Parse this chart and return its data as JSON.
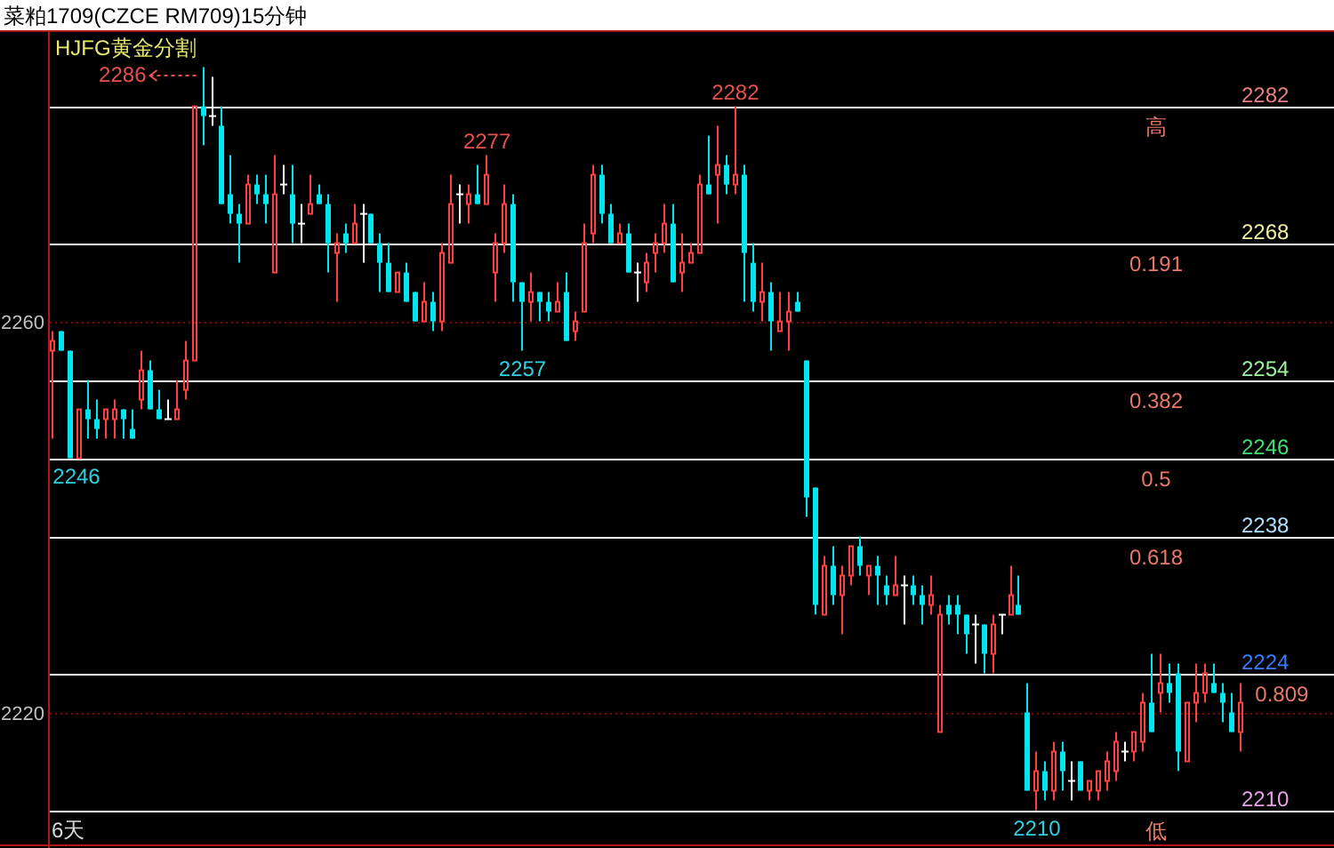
{
  "chart_data": {
    "type": "candlestick",
    "title": "菜粕1709(CZCE RM709)15分钟",
    "subtitle": "HJFG黄金分割",
    "categories": [
      null,
      null,
      null,
      null,
      null,
      null,
      null,
      null,
      null,
      null,
      null,
      null,
      null,
      null,
      null,
      null,
      null,
      null,
      null,
      null,
      null,
      null,
      null,
      null,
      null,
      null,
      null,
      null,
      null,
      null,
      null,
      null,
      null,
      null,
      null,
      null,
      null,
      null,
      null,
      null,
      null,
      null,
      null,
      null,
      null,
      null,
      null,
      null,
      null,
      null,
      null,
      null,
      null,
      null,
      null,
      null,
      null,
      null,
      null,
      null,
      null,
      null,
      null,
      null,
      null,
      null,
      null,
      null,
      null,
      null,
      null,
      null,
      null,
      null,
      null,
      null,
      null,
      null,
      null,
      null,
      null,
      null,
      null,
      null,
      null,
      null,
      null,
      null,
      null,
      null,
      null,
      null,
      null,
      null,
      null,
      null,
      null,
      null,
      null,
      null,
      null,
      null,
      null,
      null,
      null,
      null,
      null,
      null,
      null,
      null,
      null,
      null,
      null,
      null,
      null,
      null,
      null,
      null,
      null,
      null,
      null,
      null,
      null,
      null,
      null,
      null,
      null,
      null,
      null,
      null,
      null,
      null,
      null,
      null,
      null,
      null,
      null,
      null,
      null,
      null,
      null,
      null,
      null,
      null,
      null
    ],
    "ohlc": [
      [
        2257,
        2259,
        2248,
        2258
      ],
      [
        2259,
        2259,
        2257,
        2257
      ],
      [
        2257,
        2257,
        2246,
        2246
      ],
      [
        2246,
        2251,
        2246,
        2251
      ],
      [
        2251,
        2254,
        2248,
        2250
      ],
      [
        2250,
        2252,
        2248,
        2249
      ],
      [
        2250,
        2251,
        2248,
        2251
      ],
      [
        2250,
        2252,
        2248,
        2251
      ],
      [
        2251,
        2251,
        2248,
        2250
      ],
      [
        2249,
        2251,
        2248,
        2248
      ],
      [
        2252,
        2257,
        2251,
        2255
      ],
      [
        2255,
        2256,
        2251,
        2251
      ],
      [
        2251,
        2253,
        2250,
        2250
      ],
      [
        2250,
        2252,
        2250,
        2250
      ],
      [
        2250,
        2254,
        2250,
        2251
      ],
      [
        2253,
        2258,
        2252,
        2256
      ],
      [
        2256,
        2282,
        2256,
        2282
      ],
      [
        2282,
        2286,
        2278,
        2281
      ],
      [
        2281,
        2285,
        2280,
        2281
      ],
      [
        2280,
        2282,
        2272,
        2272
      ],
      [
        2273,
        2277,
        2270,
        2271
      ],
      [
        2271,
        2272,
        2266,
        2270
      ],
      [
        2270,
        2275,
        2270,
        2274
      ],
      [
        2274,
        2275,
        2272,
        2273
      ],
      [
        2273,
        2275,
        2270,
        2272
      ],
      [
        2265,
        2277,
        2265,
        2273
      ],
      [
        2274,
        2276,
        2273,
        2274
      ],
      [
        2273,
        2276,
        2268,
        2270
      ],
      [
        2270,
        2272,
        2268,
        2270
      ],
      [
        2271,
        2275,
        2271,
        2272
      ],
      [
        2273,
        2274,
        2272,
        2272
      ],
      [
        2272,
        2273,
        2265,
        2268
      ],
      [
        2267,
        2269,
        2262,
        2268
      ],
      [
        2269,
        2270,
        2267,
        2268
      ],
      [
        2268,
        2272,
        2268,
        2270
      ],
      [
        2271,
        2272,
        2266,
        2271
      ],
      [
        2271,
        2271,
        2268,
        2268
      ],
      [
        2268,
        2269,
        2263,
        2266
      ],
      [
        2266,
        2268,
        2263,
        2263
      ],
      [
        2263,
        2265,
        2263,
        2265
      ],
      [
        2265,
        2266,
        2262,
        2262
      ],
      [
        2263,
        2263,
        2260,
        2260
      ],
      [
        2260,
        2264,
        2260,
        2262
      ],
      [
        2262,
        2263,
        2259,
        2260
      ],
      [
        2260,
        2268,
        2259,
        2267
      ],
      [
        2266,
        2275,
        2266,
        2272
      ],
      [
        2273,
        2274,
        2270,
        2273
      ],
      [
        2272,
        2274,
        2270,
        2273
      ],
      [
        2273,
        2276,
        2272,
        2272
      ],
      [
        2272,
        2277,
        2272,
        2275
      ],
      [
        2265,
        2269,
        2262,
        2268
      ],
      [
        2268,
        2274,
        2267,
        2272
      ],
      [
        2272,
        2273,
        2262,
        2264
      ],
      [
        2264,
        2264,
        2257,
        2262
      ],
      [
        2262,
        2265,
        2260,
        2263
      ],
      [
        2263,
        2263,
        2260,
        2262
      ],
      [
        2262,
        2263,
        2260,
        2261
      ],
      [
        2261,
        2264,
        2261,
        2262
      ],
      [
        2263,
        2265,
        2258,
        2258
      ],
      [
        2259,
        2261,
        2258,
        2260
      ],
      [
        2261,
        2270,
        2261,
        2268
      ],
      [
        2269,
        2276,
        2268,
        2275
      ],
      [
        2275,
        2276,
        2270,
        2271
      ],
      [
        2271,
        2272,
        2268,
        2268
      ],
      [
        2268,
        2270,
        2268,
        2269
      ],
      [
        2269,
        2270,
        2265,
        2265
      ],
      [
        2265,
        2266,
        2262,
        2265
      ],
      [
        2264,
        2267,
        2263,
        2266
      ],
      [
        2267,
        2269,
        2265,
        2268
      ],
      [
        2268,
        2272,
        2267,
        2270
      ],
      [
        2270,
        2272,
        2264,
        2264
      ],
      [
        2265,
        2269,
        2263,
        2266
      ],
      [
        2266,
        2268,
        2266,
        2267
      ],
      [
        2267,
        2275,
        2267,
        2274
      ],
      [
        2274,
        2279,
        2273,
        2273
      ],
      [
        2275,
        2280,
        2270,
        2276
      ],
      [
        2276,
        2277,
        2273,
        2274
      ],
      [
        2274,
        2282,
        2273,
        2275
      ],
      [
        2275,
        2276,
        2262,
        2267
      ],
      [
        2266,
        2268,
        2261,
        2262
      ],
      [
        2262,
        2266,
        2260,
        2263
      ],
      [
        2263,
        2264,
        2257,
        2260
      ],
      [
        2259,
        2263,
        2259,
        2260
      ],
      [
        2260,
        2263,
        2257,
        2261
      ],
      [
        2262,
        2263,
        2261,
        2261
      ],
      [
        2256,
        2256,
        2240,
        2242
      ],
      [
        2243,
        2243,
        2230,
        2231
      ],
      [
        2230,
        2236,
        2230,
        2235
      ],
      [
        2235,
        2237,
        2231,
        2232
      ],
      [
        2232,
        2235,
        2228,
        2234
      ],
      [
        2234,
        2237,
        2233,
        2237
      ],
      [
        2237,
        2238,
        2234,
        2235
      ],
      [
        2234,
        2235,
        2232,
        2235
      ],
      [
        2235,
        2236,
        2231,
        2234
      ],
      [
        2233,
        2234,
        2231,
        2232
      ],
      [
        2232,
        2236,
        2232,
        2233
      ],
      [
        2233,
        2234,
        2229,
        2233
      ],
      [
        2233,
        2234,
        2231,
        2232
      ],
      [
        2232,
        2233,
        2229,
        2231
      ],
      [
        2231,
        2234,
        2230,
        2232
      ],
      [
        2218,
        2231,
        2218,
        2230
      ],
      [
        2231,
        2232,
        2229,
        2230
      ],
      [
        2231,
        2232,
        2228,
        2230
      ],
      [
        2230,
        2230,
        2226,
        2228
      ],
      [
        2229,
        2230,
        2225,
        2229
      ],
      [
        2229,
        2229,
        2224,
        2226
      ],
      [
        2226,
        2230,
        2224,
        2229
      ],
      [
        2230,
        2230,
        2228,
        2230
      ],
      [
        2230,
        2235,
        2230,
        2232
      ],
      [
        2231,
        2234,
        2230,
        2230
      ],
      [
        2220,
        2223,
        2212,
        2212
      ],
      [
        2212,
        2216,
        2210,
        2214
      ],
      [
        2214,
        2215,
        2211,
        2212
      ],
      [
        2212,
        2217,
        2211,
        2216
      ],
      [
        2216,
        2217,
        2212,
        2214
      ],
      [
        2213,
        2215,
        2211,
        2213
      ],
      [
        2215,
        2215,
        2212,
        2212
      ],
      [
        2212,
        2213,
        2211,
        2213
      ],
      [
        2212,
        2214,
        2211,
        2214
      ],
      [
        2213,
        2216,
        2212,
        2215
      ],
      [
        2214,
        2218,
        2213,
        2217
      ],
      [
        2216,
        2217,
        2215,
        2216
      ],
      [
        2216,
        2218,
        2215,
        2218
      ],
      [
        2217,
        2222,
        2216,
        2221
      ],
      [
        2221,
        2226,
        2218,
        2218
      ],
      [
        2222,
        2226,
        2220,
        2223
      ],
      [
        2223,
        2225,
        2221,
        2222
      ],
      [
        2224,
        2225,
        2214,
        2216
      ],
      [
        2215,
        2221,
        2215,
        2221
      ],
      [
        2221,
        2225,
        2219,
        2222
      ],
      [
        2222,
        2225,
        2221,
        2224
      ],
      [
        2223,
        2225,
        2222,
        2222
      ],
      [
        2222,
        2223,
        2219,
        2221
      ],
      [
        2220,
        2222,
        2218,
        2218
      ],
      [
        2218,
        2223,
        2216,
        2221
      ],
      null,
      null,
      null,
      null,
      null,
      null,
      null,
      null,
      null,
      null
    ],
    "colors": [
      "#ff4040",
      "#00e6f0",
      "#00e6f0",
      "#ff4040",
      "#00e6f0",
      "#00e6f0",
      "#ff4040",
      "#ff4040",
      "#00e6f0",
      "#00e6f0",
      "#ff4040",
      "#00e6f0",
      "#00e6f0",
      "#ffffff",
      "#ff4040",
      "#ff4040",
      "#ff4040",
      "#00e6f0",
      "#ffffff",
      "#00e6f0",
      "#00e6f0",
      "#00e6f0",
      "#ff4040",
      "#00e6f0",
      "#00e6f0",
      "#ff4040",
      "#ffffff",
      "#00e6f0",
      "#ffffff",
      "#ff4040",
      "#00e6f0",
      "#00e6f0",
      "#ff4040",
      "#00e6f0",
      "#ff4040",
      "#ffffff",
      "#00e6f0",
      "#00e6f0",
      "#00e6f0",
      "#ff4040",
      "#00e6f0",
      "#00e6f0",
      "#ff4040",
      "#00e6f0",
      "#ff4040",
      "#ff4040",
      "#ffffff",
      "#ff4040",
      "#00e6f0",
      "#ff4040",
      "#ff4040",
      "#ff4040",
      "#00e6f0",
      "#00e6f0",
      "#ff4040",
      "#00e6f0",
      "#00e6f0",
      "#ff4040",
      "#00e6f0",
      "#ff4040",
      "#ff4040",
      "#ff4040",
      "#00e6f0",
      "#00e6f0",
      "#ff4040",
      "#00e6f0",
      "#ffffff",
      "#ff4040",
      "#ff4040",
      "#ff4040",
      "#00e6f0",
      "#ff4040",
      "#ff4040",
      "#ff4040",
      "#00e6f0",
      "#ff4040",
      "#00e6f0",
      "#ff4040",
      "#00e6f0",
      "#00e6f0",
      "#ff4040",
      "#00e6f0",
      "#ff4040",
      "#ff4040",
      "#00e6f0",
      "#00e6f0",
      "#00e6f0",
      "#ff4040",
      "#00e6f0",
      "#ff4040",
      "#ff4040",
      "#00e6f0",
      "#ff4040",
      "#00e6f0",
      "#00e6f0",
      "#ff4040",
      "#ffffff",
      "#00e6f0",
      "#00e6f0",
      "#ff4040",
      "#ff4040",
      "#00e6f0",
      "#00e6f0",
      "#00e6f0",
      "#ffffff",
      "#00e6f0",
      "#ff4040",
      "#ffffff",
      "#ff4040",
      "#00e6f0",
      "#00e6f0",
      "#ff4040",
      "#00e6f0",
      "#ff4040",
      "#00e6f0",
      "#ffffff",
      "#00e6f0",
      "#ff4040",
      "#ff4040",
      "#ff4040",
      "#ff4040",
      "#ffffff",
      "#ff4040",
      "#ff4040",
      "#00e6f0",
      "#ff4040",
      "#00e6f0",
      "#00e6f0",
      "#ff4040",
      "#ff4040",
      "#ff4040",
      "#00e6f0",
      "#00e6f0",
      "#00e6f0",
      "#ff4040",
      null,
      null,
      null,
      null,
      null,
      null,
      null,
      null,
      null,
      null
    ],
    "value_labels": [
      null,
      null,
      "2246",
      null,
      null,
      null,
      null,
      null,
      null,
      null,
      null,
      null,
      null,
      null,
      null,
      null,
      null,
      "2286",
      null,
      null,
      null,
      null,
      null,
      null,
      null,
      null,
      null,
      null,
      null,
      null,
      null,
      null,
      null,
      null,
      null,
      null,
      null,
      null,
      null,
      null,
      null,
      null,
      null,
      null,
      null,
      null,
      null,
      null,
      null,
      "2277",
      null,
      null,
      null,
      "2257",
      null,
      null,
      null,
      null,
      null,
      null,
      null,
      null,
      null,
      null,
      null,
      null,
      null,
      null,
      null,
      null,
      null,
      null,
      null,
      null,
      null,
      null,
      null,
      "2282",
      null,
      null,
      null,
      null,
      null,
      null,
      null,
      null,
      null,
      null,
      null,
      null,
      null,
      null,
      null,
      null,
      null,
      null,
      null,
      null,
      null,
      null,
      null,
      null,
      null,
      null,
      null,
      null,
      null,
      null,
      null,
      null,
      null,
      "2210",
      null,
      null,
      null,
      null,
      null,
      null,
      null,
      null,
      null,
      null,
      null,
      null,
      null,
      null,
      null,
      null,
      null,
      null,
      null,
      null,
      null,
      null,
      null,
      null,
      null,
      null,
      null,
      null,
      null,
      null,
      null,
      null,
      null
    ],
    "ylim": [
      2206.5,
      2289.6
    ],
    "yticks": [
      2220,
      2260
    ],
    "grid": "y",
    "tick_labels": "y",
    "ref_lines": [
      {
        "axis": "y",
        "value": 2282,
        "label": "2282",
        "color": "#ffffff"
      },
      {
        "axis": "y",
        "value": 2268,
        "label": "2268",
        "color": "#ffffff"
      },
      {
        "axis": "y",
        "value": 2254,
        "label": "2254",
        "color": "#ffffff"
      },
      {
        "axis": "y",
        "value": 2246,
        "label": "2246",
        "color": "#ffffff"
      },
      {
        "axis": "y",
        "value": 2238,
        "label": "2238",
        "color": "#ffffff"
      },
      {
        "axis": "y",
        "value": 2224,
        "label": "2224",
        "color": "#ffffff"
      },
      {
        "axis": "y",
        "value": 2210,
        "label": "2210",
        "color": "#ffffff"
      }
    ],
    "annotations": [
      "6天",
      {
        "text": "高",
        "y": 2282
      },
      {
        "text": "0.191",
        "y": 2268
      },
      {
        "text": "0.382",
        "y": 2254
      },
      {
        "text": "0.5",
        "y": 2246
      },
      {
        "text": "0.618",
        "y": 2238
      },
      {
        "text": "0.809",
        "y": 2224
      },
      {
        "text": "低",
        "y": 2210
      }
    ]
  }
}
